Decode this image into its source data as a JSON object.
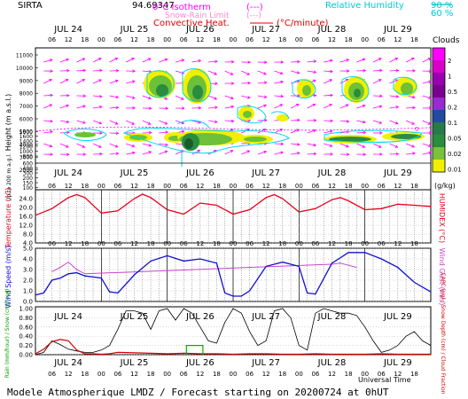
{
  "header": {
    "site": "SIRTA",
    "coords": "94.69347",
    "legend_isotherm": "0°C Isotherm",
    "legend_isotherm_sym": "(---)",
    "legend_snow_rain": "Snow-Rain Limit",
    "legend_snow_rain_sym": "(---)",
    "legend_convective": "Convective Heat.",
    "legend_convective_sym": "(°C/minute)",
    "legend_rh": "Relative Humidity",
    "legend_rh_90": "90 %",
    "legend_rh_60": "60 %"
  },
  "footer": {
    "title": "Modele Atmospherique LMDZ / Forecast starting on 20200724 at 0hUT",
    "xlabel": "Universal Time"
  },
  "colors": {
    "temperature": "#e8001c",
    "wind": "#1010d0",
    "wind_gust": "#cc44cc",
    "rh": "#00d8e8",
    "arrows": "#ff00ff",
    "precip": "#d00000",
    "cape": "#000000",
    "snow": "#00b000"
  },
  "chart_data": [
    {
      "type": "heatmap",
      "name": "clouds",
      "ylabel": "Height (m a.s.l.)",
      "ylabel2": "Up to 200 m a.g.l.",
      "colorbar_title": "Clouds",
      "colorbar_unit": "(g/kg)",
      "colorbar_ticks": [
        "2",
        "1",
        "0.5",
        "0.2",
        "0.1",
        "0.05",
        "0.02",
        "0.01"
      ],
      "y_ticks": [
        "11000",
        "10000",
        "9000",
        "8000",
        "7000",
        "6000",
        "5000",
        "4000",
        "3000",
        "2000",
        "1800",
        "1600",
        "1400",
        "1200",
        "1000",
        "800",
        "600",
        "400",
        "300",
        "200",
        "150",
        "100"
      ],
      "day_labels": [
        "JUL 24",
        "JUL 25",
        "JUL 26",
        "JUL 27",
        "JUL 28",
        "JUL 29"
      ],
      "hour_ticks": [
        "06",
        "12",
        "18",
        "00",
        "06",
        "12",
        "18",
        "00",
        "06",
        "12",
        "18",
        "00",
        "06",
        "12",
        "18",
        "00",
        "06",
        "12",
        "18",
        "00",
        "06",
        "12",
        "18"
      ],
      "isotherm_label": "0"
    },
    {
      "type": "line",
      "name": "temperature",
      "ylabel": "Temperature (°C)",
      "ylabel2": "HUMIDEX (°C)",
      "y_ticks": [
        "24.0",
        "20.0",
        "16.0",
        "12.0",
        "8.0",
        "4.0"
      ],
      "ylim": [
        4,
        28
      ],
      "x_hours": [
        0,
        6,
        12,
        15,
        18,
        24,
        30,
        36,
        39,
        42,
        48,
        54,
        60,
        66,
        72,
        78,
        84,
        87,
        90,
        96,
        102,
        108,
        111,
        114,
        120,
        126,
        132,
        138,
        144
      ],
      "values": [
        16.5,
        19.5,
        24.5,
        25.8,
        24.5,
        17.5,
        18.5,
        24.0,
        26.0,
        24.5,
        19.0,
        17.0,
        22.0,
        21.0,
        17.0,
        19.0,
        24.5,
        25.8,
        24.0,
        18.0,
        19.5,
        23.5,
        24.5,
        23.0,
        19.0,
        19.5,
        21.5,
        21.0,
        20.5
      ]
    },
    {
      "type": "line",
      "name": "wind",
      "ylabel": "Wind Speed (m/s)",
      "ylabel2": "Wind Gust (m/s)",
      "y_ticks": [
        "5.0",
        "4.0",
        "3.0",
        "2.0",
        "1.0",
        "0.0"
      ],
      "ylim": [
        0,
        5
      ],
      "x_hours": [
        0,
        3,
        6,
        9,
        12,
        15,
        18,
        21,
        24,
        27,
        30,
        36,
        42,
        48,
        54,
        60,
        66,
        69,
        72,
        75,
        78,
        84,
        90,
        96,
        99,
        102,
        108,
        114,
        120,
        126,
        132,
        138,
        144
      ],
      "values": [
        0.6,
        0.8,
        2.0,
        2.2,
        2.6,
        2.7,
        2.4,
        2.3,
        2.2,
        0.9,
        0.8,
        2.5,
        3.8,
        4.3,
        3.8,
        4.0,
        3.6,
        0.8,
        0.5,
        0.5,
        1.0,
        3.3,
        3.7,
        3.3,
        0.8,
        0.7,
        3.6,
        4.6,
        4.6,
        4.0,
        3.2,
        1.8,
        0.9
      ],
      "gust_x_hours": [
        6,
        9,
        12,
        15,
        18,
        108,
        111,
        114,
        117
      ],
      "gust_values": [
        2.8,
        3.2,
        3.7,
        3.0,
        2.6,
        3.5,
        3.6,
        3.4,
        3.2
      ]
    },
    {
      "type": "line",
      "name": "precip",
      "ylabel": "Rain (mm/hour) / Snow (cm/hour)",
      "ylabel2": "CAPC (J/g) / Snow Depth (cm) / Cloud Fraction",
      "y_ticks": [
        "1.00",
        "0.80",
        "0.60",
        "0.40",
        "0.20",
        "0.00"
      ],
      "ylim": [
        0,
        1
      ],
      "rain_x_hours": [
        0,
        3,
        6,
        9,
        12,
        15,
        18,
        21,
        24,
        27,
        30,
        36,
        42,
        48,
        54,
        60,
        66,
        72,
        78,
        84,
        90,
        96,
        102,
        108,
        114,
        120,
        126,
        132,
        138,
        144
      ],
      "rain_values": [
        0.02,
        0.12,
        0.28,
        0.33,
        0.3,
        0.1,
        0.02,
        0.02,
        0.01,
        0.02,
        0.05,
        0.04,
        0.03,
        0.02,
        0.03,
        0.02,
        0.02,
        0.01,
        0.02,
        0.02,
        0.01,
        0.01,
        0.02,
        0.01,
        0.01,
        0.01,
        0.02,
        0.01,
        0.01,
        0.01
      ],
      "cloud_x_hours": [
        0,
        3,
        6,
        9,
        12,
        15,
        18,
        21,
        24,
        27,
        30,
        33,
        36,
        39,
        42,
        45,
        48,
        51,
        54,
        57,
        60,
        63,
        66,
        69,
        72,
        75,
        78,
        81,
        84,
        87,
        90,
        93,
        96,
        99,
        102,
        105,
        108,
        111,
        114,
        117,
        120,
        123,
        126,
        129,
        132,
        135,
        138,
        141,
        144
      ],
      "cloud_values": [
        0.0,
        0.05,
        0.3,
        0.22,
        0.12,
        0.08,
        0.05,
        0.05,
        0.1,
        0.2,
        0.55,
        0.95,
        0.95,
        0.9,
        0.55,
        0.95,
        1.0,
        0.75,
        1.0,
        0.9,
        0.6,
        0.3,
        0.25,
        0.7,
        1.0,
        0.9,
        0.5,
        0.2,
        0.3,
        0.95,
        1.0,
        0.8,
        0.2,
        0.1,
        0.9,
        1.0,
        0.95,
        0.9,
        0.9,
        0.85,
        0.6,
        0.3,
        0.05,
        0.1,
        0.2,
        0.4,
        0.5,
        0.3,
        0.2
      ],
      "snow_x_hours": [
        55,
        55,
        61,
        61
      ],
      "snow_values": [
        0.0,
        0.2,
        0.2,
        0.0
      ]
    }
  ]
}
